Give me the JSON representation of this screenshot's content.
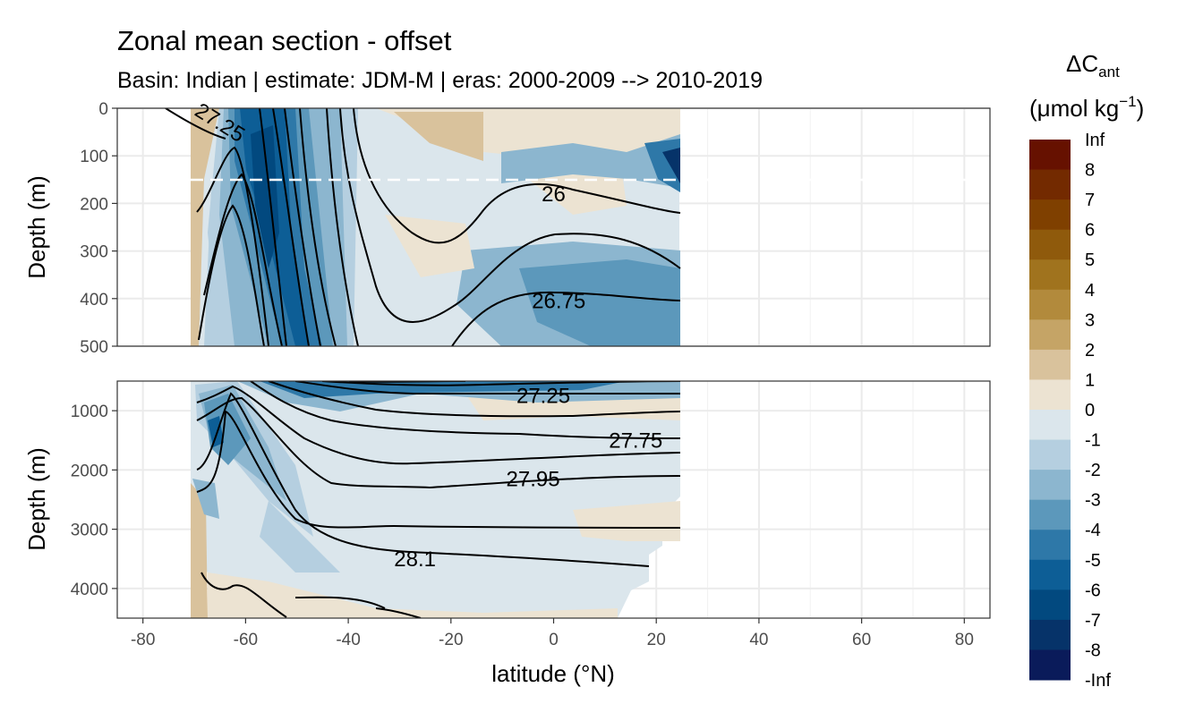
{
  "chart_data": {
    "type": "heatmap",
    "title": "Zonal mean section - offset",
    "subtitle": "Basin: Indian | estimate: JDM-M | eras: 2000-2009 --> 2010-2019",
    "xlabel": "latitude (°N)",
    "ylabel": "Depth (m)",
    "xlim": [
      -85,
      85
    ],
    "x_ticks": [
      -80,
      -60,
      -40,
      -20,
      0,
      20,
      40,
      60,
      80
    ],
    "x_tick_labels": [
      "-80",
      "-60",
      "-40",
      "-20",
      "0",
      "20",
      "40",
      "60",
      "80"
    ],
    "grid": true,
    "data_lat_range": [
      -70,
      24
    ],
    "panels": [
      {
        "name": "upper",
        "ylim": [
          0,
          500
        ],
        "y_ticks": [
          0,
          100,
          200,
          300,
          400,
          500
        ],
        "y_tick_labels": [
          "0",
          "100",
          "200",
          "300",
          "400",
          "500"
        ],
        "reference_line_depth": 150
      },
      {
        "name": "lower",
        "ylim": [
          500,
          4500
        ],
        "y_ticks": [
          1000,
          2000,
          3000,
          4000
        ],
        "y_tick_labels": [
          "1000",
          "2000",
          "3000",
          "4000"
        ]
      }
    ],
    "contour_labels": [
      {
        "text": "27.25",
        "lat": -65,
        "depth": 30,
        "panel": "upper"
      },
      {
        "text": "26",
        "lat": 0,
        "depth": 180,
        "panel": "upper"
      },
      {
        "text": "26.75",
        "lat": 1,
        "depth": 405,
        "panel": "upper"
      },
      {
        "text": "27.25",
        "lat": -2,
        "depth": 750,
        "panel": "lower"
      },
      {
        "text": "27.75",
        "lat": 16,
        "depth": 1500,
        "panel": "lower"
      },
      {
        "text": "27.95",
        "lat": -4,
        "depth": 2150,
        "panel": "lower"
      },
      {
        "text": "28.1",
        "lat": -27,
        "depth": 3500,
        "panel": "lower"
      }
    ],
    "legend": {
      "title": "ΔC",
      "title_sub": "ant",
      "unit_prefix": "(μmol kg",
      "unit_sup": "−1",
      "unit_suffix": ")",
      "position": "right",
      "labels": [
        "Inf",
        "8",
        "7",
        "6",
        "5",
        "4",
        "3",
        "2",
        "1",
        "0",
        "-1",
        "-2",
        "-3",
        "-4",
        "-5",
        "-6",
        "-7",
        "-8",
        "-Inf"
      ],
      "colors": [
        "#661100",
        "#732a00",
        "#7f4000",
        "#8f5a0c",
        "#a0731e",
        "#b28a3c",
        "#c5a466",
        "#d9c29c",
        "#ece3d2",
        "#dbe6ec",
        "#b5cfe0",
        "#8cb6cf",
        "#5c98bb",
        "#2e78a8",
        "#0d5e96",
        "#02497f",
        "#063369",
        "#0a1b5a"
      ]
    },
    "field_levels": [
      {
        "value": 0.5,
        "meaning": "between 0 and 1"
      },
      {
        "value": -0.5,
        "meaning": "between -1 and 0"
      },
      {
        "value": -1.5,
        "meaning": "between -2 and -1"
      },
      {
        "value": -3.5,
        "meaning": "between -4 and -3"
      },
      {
        "value": -6.5,
        "meaning": "between -7 and -6"
      },
      {
        "value": 1.5,
        "meaning": "between 1 and 2"
      }
    ]
  }
}
